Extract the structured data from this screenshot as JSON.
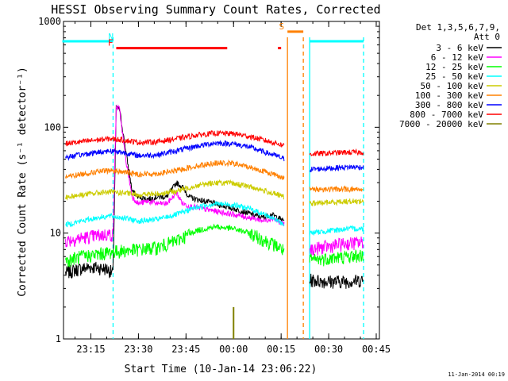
{
  "chart_data": {
    "type": "line",
    "title": "HESSI Observing Summary Count Rates, Corrected",
    "xlabel": "Start Time (10-Jan-14 23:06:22)",
    "ylabel": "Corrected Count Rate (s⁻¹ detector⁻¹)",
    "ylog": true,
    "ylim": [
      1,
      1000
    ],
    "xlim": [
      "2014-01-10T23:06:22",
      "2014-01-11T00:46:00"
    ],
    "y_ticks": [
      "1",
      "10",
      "100",
      "1000"
    ],
    "x_ticks": [
      {
        "time": "2014-01-10T23:15:00",
        "label": "23:15"
      },
      {
        "time": "2014-01-10T23:30:00",
        "label": "23:30"
      },
      {
        "time": "2014-01-10T23:45:00",
        "label": "23:45"
      },
      {
        "time": "2014-01-11T00:00:00",
        "label": "00:00"
      },
      {
        "time": "2014-01-11T00:15:00",
        "label": "00:15"
      },
      {
        "time": "2014-01-11T00:30:00",
        "label": "00:30"
      },
      {
        "time": "2014-01-11T00:45:00",
        "label": "00:45"
      }
    ],
    "legend_header": [
      "Det 1,3,5,6,7,9,",
      "Att 0"
    ],
    "legend_position": "right",
    "timestamp": "11-Jan-2014 00:19",
    "series": [
      {
        "name": "3 - 6 keV",
        "color": "#000000",
        "points": [
          [
            "23:07",
            4.2
          ],
          [
            "23:10",
            4.5
          ],
          [
            "23:15",
            4.8
          ],
          [
            "23:20",
            4.6
          ],
          [
            "23:22",
            4.2
          ],
          [
            "23:23",
            150
          ],
          [
            "23:24",
            150
          ],
          [
            "23:26",
            60
          ],
          [
            "23:28",
            25
          ],
          [
            "23:30",
            22
          ],
          [
            "23:33",
            21
          ],
          [
            "23:36",
            22
          ],
          [
            "23:39",
            22
          ],
          [
            "23:42",
            30
          ],
          [
            "23:44",
            27
          ],
          [
            "23:46",
            22
          ],
          [
            "23:48",
            21
          ],
          [
            "23:51",
            20
          ],
          [
            "23:54",
            19
          ],
          [
            "23:57",
            18
          ],
          [
            "00:00",
            17
          ],
          [
            "00:03",
            16
          ],
          [
            "00:06",
            15
          ],
          [
            "00:09",
            14
          ],
          [
            "00:12",
            15
          ],
          [
            "00:14",
            14
          ],
          [
            "00:16",
            13
          ]
        ],
        "points2": [
          [
            "00:24",
            3.6
          ],
          [
            "00:30",
            3.5
          ],
          [
            "00:36",
            3.5
          ],
          [
            "00:41",
            3.6
          ]
        ]
      },
      {
        "name": "6 - 12 keV",
        "color": "#ff00ff",
        "points": [
          [
            "23:07",
            8.5
          ],
          [
            "23:12",
            9
          ],
          [
            "23:17",
            9.5
          ],
          [
            "23:21",
            9.8
          ],
          [
            "23:22",
            9.5
          ],
          [
            "23:23",
            155
          ],
          [
            "23:24",
            150
          ],
          [
            "23:26",
            50
          ],
          [
            "23:28",
            22
          ],
          [
            "23:30",
            19
          ],
          [
            "23:33",
            20
          ],
          [
            "23:36",
            19
          ],
          [
            "23:39",
            19
          ],
          [
            "23:42",
            24
          ],
          [
            "23:44",
            19
          ],
          [
            "23:46",
            18
          ],
          [
            "23:50",
            17
          ],
          [
            "23:55",
            16
          ],
          [
            "00:00",
            15
          ],
          [
            "00:05",
            14
          ],
          [
            "00:10",
            13
          ],
          [
            "00:12",
            14
          ],
          [
            "00:14",
            13
          ],
          [
            "00:16",
            12
          ]
        ],
        "points2": [
          [
            "00:24",
            7
          ],
          [
            "00:30",
            7.5
          ],
          [
            "00:36",
            8
          ],
          [
            "00:41",
            8.2
          ]
        ]
      },
      {
        "name": "12 - 25 keV",
        "color": "#00ff00",
        "points": [
          [
            "23:07",
            5.5
          ],
          [
            "23:12",
            6
          ],
          [
            "23:17",
            6.3
          ],
          [
            "23:21",
            6.6
          ],
          [
            "23:25",
            6.8
          ],
          [
            "23:30",
            7
          ],
          [
            "23:36",
            7.3
          ],
          [
            "23:42",
            8.5
          ],
          [
            "23:48",
            10.5
          ],
          [
            "23:54",
            11.5
          ],
          [
            "00:00",
            11
          ],
          [
            "00:05",
            10
          ],
          [
            "00:10",
            8.5
          ],
          [
            "00:14",
            7.5
          ],
          [
            "00:16",
            6.8
          ]
        ],
        "points2": [
          [
            "00:24",
            5.5
          ],
          [
            "00:30",
            5.8
          ],
          [
            "00:36",
            6
          ],
          [
            "00:41",
            6.2
          ]
        ]
      },
      {
        "name": "25 - 50 keV",
        "color": "#00ffff",
        "points": [
          [
            "23:07",
            12
          ],
          [
            "23:12",
            13
          ],
          [
            "23:17",
            14
          ],
          [
            "23:21",
            14.5
          ],
          [
            "23:25",
            14
          ],
          [
            "23:30",
            13
          ],
          [
            "23:36",
            13.5
          ],
          [
            "23:42",
            15
          ],
          [
            "23:48",
            17.5
          ],
          [
            "23:54",
            19
          ],
          [
            "00:00",
            18.5
          ],
          [
            "00:05",
            17
          ],
          [
            "00:10",
            15
          ],
          [
            "00:14",
            13
          ],
          [
            "00:16",
            12
          ]
        ],
        "points2": [
          [
            "00:24",
            10
          ],
          [
            "00:30",
            10.5
          ],
          [
            "00:36",
            11
          ],
          [
            "00:41",
            11
          ]
        ]
      },
      {
        "name": "50 - 100 keV",
        "color": "#cccc00",
        "points": [
          [
            "23:07",
            22
          ],
          [
            "23:12",
            23
          ],
          [
            "23:17",
            24
          ],
          [
            "23:21",
            24.5
          ],
          [
            "23:25",
            24
          ],
          [
            "23:30",
            23
          ],
          [
            "23:36",
            23.5
          ],
          [
            "23:42",
            25
          ],
          [
            "23:48",
            28
          ],
          [
            "23:54",
            30
          ],
          [
            "00:00",
            29.5
          ],
          [
            "00:05",
            27.5
          ],
          [
            "00:10",
            25
          ],
          [
            "00:14",
            23
          ],
          [
            "00:16",
            22
          ]
        ],
        "points2": [
          [
            "00:24",
            19
          ],
          [
            "00:30",
            19.5
          ],
          [
            "00:36",
            20
          ],
          [
            "00:41",
            20
          ]
        ]
      },
      {
        "name": "100 - 300 keV",
        "color": "#ff8000",
        "points": [
          [
            "23:07",
            34
          ],
          [
            "23:12",
            36
          ],
          [
            "23:17",
            38
          ],
          [
            "23:21",
            39
          ],
          [
            "23:25",
            38
          ],
          [
            "23:30",
            36
          ],
          [
            "23:36",
            36.5
          ],
          [
            "23:42",
            39
          ],
          [
            "23:48",
            43
          ],
          [
            "23:54",
            46
          ],
          [
            "00:00",
            45.5
          ],
          [
            "00:05",
            42
          ],
          [
            "00:10",
            38
          ],
          [
            "00:14",
            35
          ],
          [
            "00:16",
            33
          ]
        ],
        "points2": [
          [
            "00:24",
            26
          ],
          [
            "00:30",
            26
          ],
          [
            "00:36",
            26
          ],
          [
            "00:41",
            26
          ]
        ]
      },
      {
        "name": "300 - 800 keV",
        "color": "#0000ff",
        "points": [
          [
            "23:07",
            52
          ],
          [
            "23:12",
            55
          ],
          [
            "23:17",
            58
          ],
          [
            "23:21",
            60
          ],
          [
            "23:25",
            58
          ],
          [
            "23:30",
            54
          ],
          [
            "23:36",
            55
          ],
          [
            "23:42",
            60
          ],
          [
            "23:48",
            66
          ],
          [
            "23:54",
            71
          ],
          [
            "00:00",
            70
          ],
          [
            "00:05",
            65
          ],
          [
            "00:10",
            58
          ],
          [
            "00:14",
            53
          ],
          [
            "00:16",
            50
          ]
        ],
        "points2": [
          [
            "00:24",
            40
          ],
          [
            "00:30",
            41
          ],
          [
            "00:36",
            42
          ],
          [
            "00:41",
            42
          ]
        ]
      },
      {
        "name": "800 - 7000 keV",
        "color": "#ff0000",
        "points": [
          [
            "23:07",
            70
          ],
          [
            "23:12",
            73
          ],
          [
            "23:17",
            76
          ],
          [
            "23:21",
            78
          ],
          [
            "23:25",
            76
          ],
          [
            "23:30",
            72
          ],
          [
            "23:36",
            73
          ],
          [
            "23:42",
            78
          ],
          [
            "23:48",
            84
          ],
          [
            "23:54",
            88
          ],
          [
            "00:00",
            87
          ],
          [
            "00:05",
            82
          ],
          [
            "00:10",
            75
          ],
          [
            "00:14",
            70
          ],
          [
            "00:16",
            67
          ]
        ],
        "points2": [
          [
            "00:24",
            56
          ],
          [
            "00:30",
            57
          ],
          [
            "00:36",
            58
          ],
          [
            "00:41",
            58
          ]
        ]
      },
      {
        "name": "7000 - 20000 keV",
        "color": "#808000",
        "points": [
          [
            "00:00",
            1.0
          ],
          [
            "00:00",
            2.0
          ],
          [
            "00:00",
            1.0
          ]
        ],
        "points2": []
      }
    ],
    "flag_bars": [
      {
        "label": "N",
        "color": "#00ffff",
        "y": 650,
        "segments": [
          [
            "23:06",
            "23:22"
          ],
          [
            "00:24",
            "00:41"
          ]
        ]
      },
      {
        "label": "F",
        "color": "#ff0000",
        "y": 560,
        "segments": [
          [
            "23:23",
            "23:58"
          ],
          [
            "00:14",
            "00:15"
          ]
        ]
      },
      {
        "label": "S",
        "color": "#ff8000",
        "y": 800,
        "segments": [
          [
            "00:17",
            "00:22"
          ]
        ]
      }
    ],
    "vertical_markers": [
      {
        "time": "23:22",
        "color": "#00ffff",
        "style": "dashed"
      },
      {
        "time": "00:24",
        "color": "#00ffff",
        "style": "solid"
      },
      {
        "time": "00:41",
        "color": "#00ffff",
        "style": "dashed"
      },
      {
        "time": "00:17",
        "color": "#ff8000",
        "style": "solid"
      },
      {
        "time": "00:22",
        "color": "#ff8000",
        "style": "dashed"
      }
    ]
  }
}
